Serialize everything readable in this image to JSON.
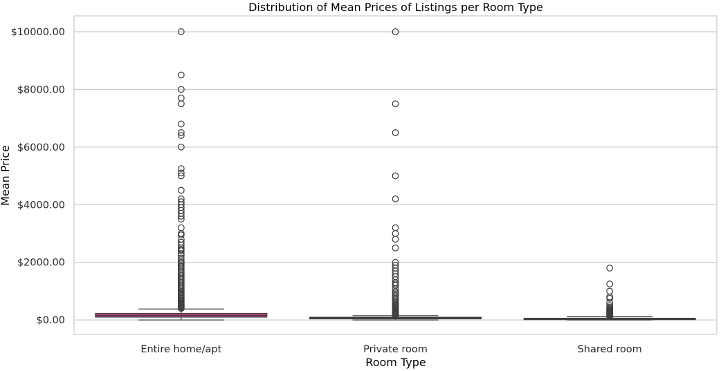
{
  "chart_data": {
    "type": "box",
    "title": "Distribution of Mean Prices of Listings per Room Type",
    "xlabel": "Room Type",
    "ylabel": "Mean Price",
    "ylim": [
      -500,
      10550
    ],
    "yticks": [
      0,
      2000,
      4000,
      6000,
      8000,
      10000
    ],
    "ytick_labels": [
      "$0.00",
      "$2000.00",
      "$4000.00",
      "$6000.00",
      "$8000.00",
      "$10000.00"
    ],
    "grid": "horizontal",
    "categories": [
      "Entire home/apt",
      "Private room",
      "Shared room"
    ],
    "boxes": [
      {
        "name": "Entire home/apt",
        "min": 0,
        "q1": 100,
        "median": 160,
        "q3": 230,
        "max": 380,
        "color": "#cc3f86",
        "outliers": [
          10000,
          8500,
          8000,
          7700,
          7500,
          6800,
          6500,
          6400,
          6000,
          5250,
          5100,
          5000,
          4500,
          4200,
          4100,
          4000,
          3900,
          3800,
          3700,
          3600,
          3500,
          3200,
          3000,
          2950,
          2800,
          2700,
          2600,
          2500,
          2450,
          2400,
          2300,
          2250,
          2150,
          2050,
          2000,
          1950,
          1900,
          1850,
          1800,
          1700,
          1650,
          1600,
          1550,
          1500,
          1450,
          1400,
          1350,
          1300,
          1250,
          1200,
          1150,
          1100,
          1050,
          1000,
          960,
          920,
          880,
          840,
          800,
          760,
          720,
          680,
          640,
          600,
          570,
          540,
          510,
          480,
          450,
          420,
          400
        ]
      },
      {
        "name": "Private room",
        "min": 0,
        "q1": 40,
        "median": 65,
        "q3": 95,
        "max": 150,
        "color": "#636363",
        "outliers": [
          10000,
          7500,
          6500,
          5000,
          4200,
          3200,
          3000,
          2800,
          2500,
          2000,
          1900,
          1800,
          1700,
          1600,
          1500,
          1400,
          1300,
          1250,
          1200,
          1100,
          1000,
          950,
          900,
          850,
          800,
          750,
          700,
          650,
          600,
          560,
          520,
          480,
          440,
          400,
          370,
          340,
          310,
          280,
          250,
          220,
          200,
          180,
          165
        ]
      },
      {
        "name": "Shared room",
        "min": 0,
        "q1": 25,
        "median": 40,
        "q3": 60,
        "max": 110,
        "color": "#636363",
        "outliers": [
          1800,
          1250,
          1000,
          800,
          750,
          600,
          500,
          450,
          400,
          380,
          350,
          320,
          300,
          280,
          260,
          240,
          220,
          200,
          180,
          160,
          140,
          125
        ]
      }
    ]
  }
}
